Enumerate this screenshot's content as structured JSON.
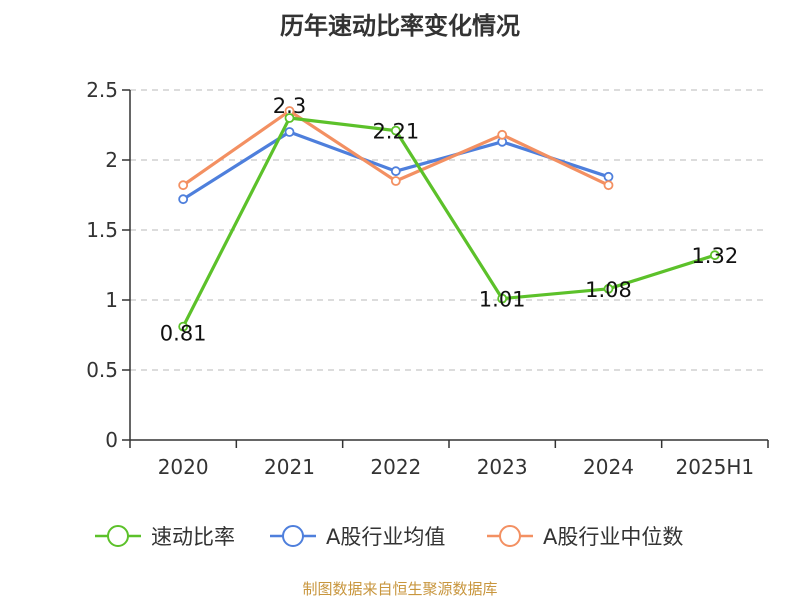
{
  "chart_data": {
    "type": "line",
    "title": "历年速动比率变化情况",
    "categories": [
      "2020",
      "2021",
      "2022",
      "2023",
      "2024",
      "2025H1"
    ],
    "ylim": [
      0,
      2.5
    ],
    "yticks": [
      "0",
      "0.5",
      "1",
      "1.5",
      "2",
      "2.5"
    ],
    "grid": true,
    "legend_position": "bottom",
    "series": [
      {
        "name": "速动比率",
        "color": "#5cc12a",
        "values": [
          0.81,
          2.3,
          2.21,
          1.01,
          1.08,
          1.32
        ],
        "labels": [
          "0.81",
          "2.3",
          "2.21",
          "1.01",
          "1.08",
          "1.32"
        ]
      },
      {
        "name": "A股行业均值",
        "color": "#4e7fdc",
        "values": [
          1.72,
          2.2,
          1.92,
          2.13,
          1.88,
          null
        ]
      },
      {
        "name": "A股行业中位数",
        "color": "#f39062",
        "values": [
          1.82,
          2.35,
          1.85,
          2.18,
          1.82,
          null
        ]
      }
    ]
  },
  "footer": {
    "source": "制图数据来自恒生聚源数据库"
  }
}
